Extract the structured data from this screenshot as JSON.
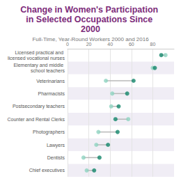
{
  "chart_data": {
    "type": "dumbbell",
    "title": "Change in Women's Participation in Selected Occupations Since 2000",
    "subtitle": "Full-Time, Year-Round Workers 2000 and 2016",
    "orientation": "horizontal",
    "categories": [
      "Licensed practical and licensed vocational nurses",
      "Elementary and middle school teachers",
      "Veterinarians",
      "Pharmacists",
      "Postsecondary teachers",
      "Counter and Rental Clerks",
      "Photographers",
      "Lawyers",
      "Dentists",
      "Chief executives"
    ],
    "series": [
      {
        "color": "#8fd3c0",
        "values": [
          92,
          80,
          36,
          42,
          41,
          57,
          29,
          27,
          15,
          18
        ]
      },
      {
        "color": "#13866a",
        "values": [
          88,
          82,
          62,
          56,
          48,
          45,
          47,
          38,
          30,
          25
        ]
      }
    ],
    "xlim": [
      0,
      100
    ],
    "xticks": [
      0,
      20,
      40,
      60,
      80
    ],
    "grid": true
  }
}
